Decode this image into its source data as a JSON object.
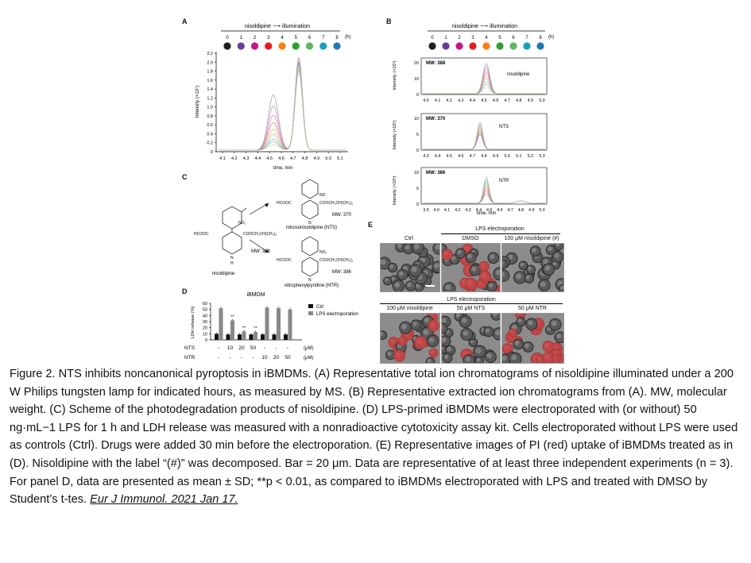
{
  "panels": {
    "A": {
      "label": "A",
      "header": "nisoldipine ⟶ illumination",
      "hours": [
        "0",
        "1",
        "2",
        "3",
        "4",
        "5",
        "6",
        "7",
        "8"
      ],
      "unit": "(h)",
      "dot_colors": [
        "#1f1f1f",
        "#6a3d9a",
        "#c71585",
        "#e31a1c",
        "#ff7f0e",
        "#2ca02c",
        "#5cb85c",
        "#17a2b8",
        "#1f77b4"
      ],
      "ylabel": "Intensity (×10⁷)",
      "xlabel": "time, min",
      "yticks": [
        "0",
        "0.2",
        "0.4",
        "0.6",
        "0.8",
        "1.0",
        "1.2",
        "1.4",
        "1.6",
        "1.8",
        "2.0",
        "2.2"
      ],
      "xticks": [
        "4.1",
        "4.2",
        "4.3",
        "4.4",
        "4.5",
        "4.6",
        "4.7",
        "4.8",
        "4.9",
        "5.0",
        "5.1"
      ]
    },
    "B": {
      "label": "B",
      "header": "nisoldipine ⟶ illumination",
      "hours": [
        "0",
        "1",
        "2",
        "3",
        "4",
        "5",
        "6",
        "7",
        "8"
      ],
      "unit": "(h)",
      "ylabel": "Intensity (×10⁵)",
      "xlabel": "time, min",
      "sub": [
        {
          "mw": "MW: 388",
          "name": "nisoldipine",
          "yticks": [
            "0",
            "10",
            "20"
          ],
          "xticks": [
            "4.0",
            "4.1",
            "4.2",
            "4.3",
            "4.4",
            "4.5",
            "4.6",
            "4.7",
            "4.8",
            "4.9",
            "5.0"
          ]
        },
        {
          "mw": "MW: 370",
          "name": "NTS",
          "yticks": [
            "0",
            "5",
            "10"
          ],
          "xticks": [
            "4.3",
            "4.4",
            "4.5",
            "4.6",
            "4.7",
            "4.8",
            "4.9",
            "5.0",
            "5.1",
            "5.2",
            "5.3"
          ]
        },
        {
          "mw": "MW: 386",
          "name": "NTR",
          "yticks": [
            "0",
            "5",
            "10"
          ],
          "xticks": [
            "3.9",
            "4.0",
            "4.1",
            "4.2",
            "4.3",
            "4.4",
            "4.5",
            "4.6",
            "4.7",
            "4.8",
            "4.9",
            "5.0"
          ]
        }
      ]
    },
    "C": {
      "label": "C",
      "parent_name": "nisoldipine",
      "parent_mw": "MW: 388",
      "nts_name": "nitrosonisoldipine (NTS)",
      "nts_mw": "MW: 370",
      "ntr_name": "nitrophenylpyridine (NTR)",
      "ntr_mw": "MW: 386",
      "ester": "COOCH₂CH(CH₃)₂",
      "hcooc": "HCOOC",
      "no2": "NO₂",
      "no": "NO",
      "nh": "N",
      "h": "H"
    },
    "D": {
      "label": "D",
      "title": "iBMDM",
      "ylabel": "LDH release (%)",
      "yticks": [
        "0",
        "10",
        "20",
        "30",
        "40",
        "50",
        "60"
      ],
      "legend": [
        "Ctrl",
        "LPS electroporation"
      ],
      "row1_label": "NTS",
      "row2_label": "NTR",
      "row1": [
        "-",
        "10",
        "20",
        "50",
        "-",
        "-",
        "-",
        "-"
      ],
      "row2": [
        "-",
        "-",
        "-",
        "-",
        "10",
        "20",
        "50",
        "(μM)"
      ],
      "unit": "(μM)",
      "star": "**"
    },
    "E": {
      "label": "E",
      "top_group": "LPS electroporation",
      "top_labels": [
        "Ctrl",
        "DMSO",
        "100 μM nisoldipine (#)"
      ],
      "bottom_group": "LPS electroporation",
      "bottom_labels": [
        "100 μM nisoldipine",
        "50 μM NTS",
        "50 μM NTR"
      ]
    }
  },
  "chart_data": {
    "type": "bar",
    "title": "iBMDM",
    "ylabel": "LDH release (%)",
    "ylim": [
      0,
      60
    ],
    "categories": [
      "-/-",
      "NTS 10",
      "NTS 20",
      "NTS 50",
      "NTR 10",
      "NTR 20",
      "NTR 50"
    ],
    "series": [
      {
        "name": "Ctrl",
        "values": [
          10,
          9,
          9,
          9,
          9,
          9,
          9
        ]
      },
      {
        "name": "LPS electroporation",
        "values": [
          52,
          32,
          14,
          13,
          53,
          52,
          50
        ]
      }
    ]
  },
  "caption": {
    "text": "Figure 2. NTS inhibits noncanonical pyroptosis in iBMDMs. (A) Representative total ion chromatograms of nisoldipine illuminated under a 200 W Philips tungsten lamp for indicated hours, as measured by MS. (B) Representative extracted ion chromatograms from (A). MW, molecular weight. (C) Scheme of the photodegradation products of nisoldipine. (D) LPS-primed iBMDMs were electroporated with (or without) 50 ng·mL−1 LPS for 1 h and LDH release was measured with a nonradioactive cytotoxicity assay kit. Cells electroporated without LPS were used as controls (Ctrl). Drugs were added 30 min before the electroporation. (E) Representative images of PI (red) uptake of iBMDMs treated as in (D). Nisoldipine with the label “(#)” was decomposed. Bar = 20 μm. Data are representative of at least three independent experiments (n = 3). For panel D, data are presented as mean ± SD; **p < 0.01, as compared to iBMDMs electroporated with LPS and treated with DMSO by Student’s t-tes. ",
    "citation": "Eur J Immunol. 2021 Jan 17."
  }
}
